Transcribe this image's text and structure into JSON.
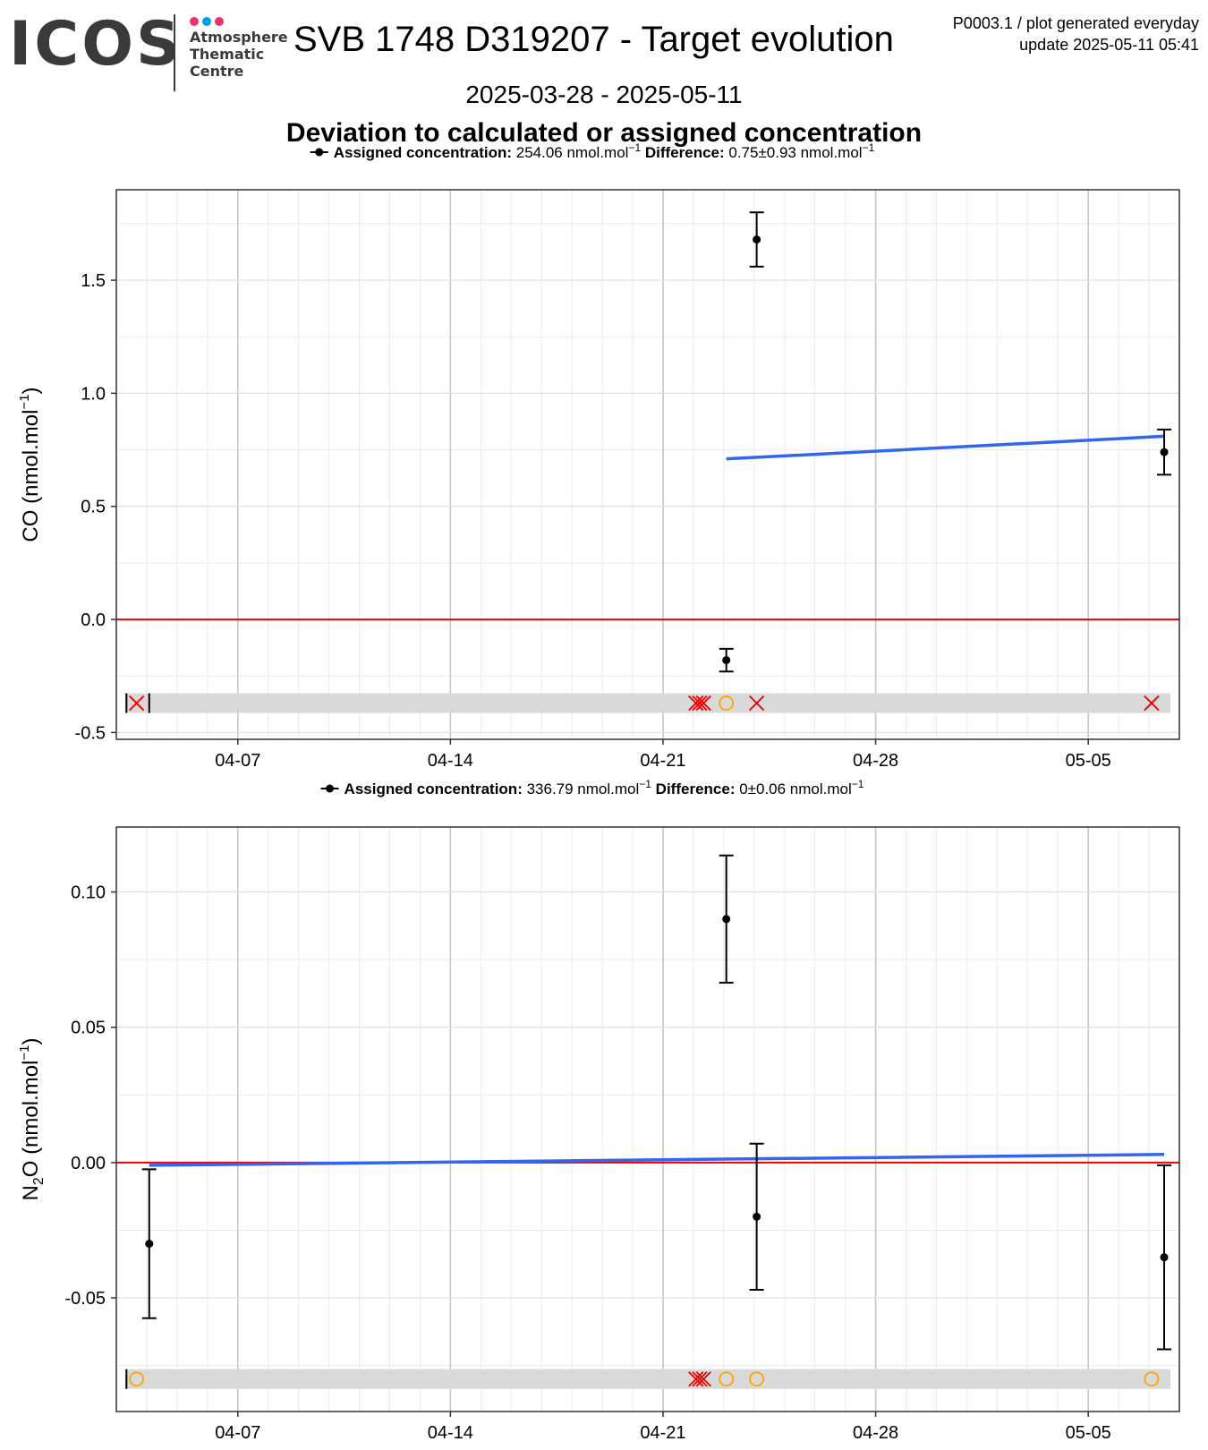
{
  "header": {
    "logo_text": "ICOS",
    "logo_sub": [
      "Atmosphere",
      "Thematic",
      "Centre"
    ],
    "logo_dot_colors": [
      "#e6336e",
      "#00a0e0",
      "#e6336e"
    ],
    "title": "SVB 1748 D319207 - Target evolution",
    "meta_line1": "P0003.1 / plot generated everyday",
    "meta_line2": "update  2025-05-11 05:41",
    "date_range": "2025-03-28 - 2025-05-11",
    "subtitle": "Deviation to calculated or assigned concentration"
  },
  "colors": {
    "point": "#000000",
    "trend": "#3366ee",
    "zero_line": "#ee0000",
    "flag_band": "#d9d9d9",
    "flag_x": "#ee0000",
    "flag_o": "#ffa500"
  },
  "chart_data": [
    {
      "type": "scatter",
      "legend": {
        "assigned_label": "Assigned concentration:",
        "assigned_value": "254.06 nmol.mol",
        "difference_label": "Difference:",
        "difference_value": "0.75±0.93 nmol.mol"
      },
      "ylabel": "CO (nmol.mol",
      "ylabel_sub": "",
      "ylabel_tail": ")",
      "ylim": [
        -0.53,
        1.9
      ],
      "yticks": [
        -0.5,
        0.0,
        0.5,
        1.0,
        1.5
      ],
      "ytick_labels": [
        "-0.5",
        "0.0",
        "0.5",
        "1.0",
        "1.5"
      ],
      "xlim": [
        "2025-04-03",
        "2025-05-08"
      ],
      "xticks": [
        "2025-04-07",
        "2025-04-14",
        "2025-04-21",
        "2025-04-28",
        "2025-05-05"
      ],
      "xtick_labels": [
        "04-07",
        "04-14",
        "04-21",
        "04-28",
        "05-05"
      ],
      "grid": true,
      "points": [
        {
          "x": "2025-04-23 02:00",
          "y": -0.18,
          "err": 0.05
        },
        {
          "x": "2025-04-24 02:00",
          "y": 1.68,
          "err": 0.12
        },
        {
          "x": "2025-05-07 12:00",
          "y": 0.74,
          "err": 0.1
        }
      ],
      "trend": [
        {
          "x": "2025-04-23 02:00",
          "y": 0.71
        },
        {
          "x": "2025-05-07 12:00",
          "y": 0.81
        }
      ],
      "flag_y": -0.37,
      "flags": [
        {
          "x": "2025-04-03 08:00",
          "kind": "bar"
        },
        {
          "x": "2025-04-03 16:00",
          "kind": "x"
        },
        {
          "x": "2025-04-04 02:00",
          "kind": "bar"
        },
        {
          "x": "2025-04-22 02:00",
          "kind": "x"
        },
        {
          "x": "2025-04-22 05:00",
          "kind": "x"
        },
        {
          "x": "2025-04-22 08:00",
          "kind": "x"
        },
        {
          "x": "2025-04-23 02:00",
          "kind": "o"
        },
        {
          "x": "2025-04-24 02:00",
          "kind": "x"
        },
        {
          "x": "2025-05-07 02:00",
          "kind": "x"
        }
      ]
    },
    {
      "type": "scatter",
      "legend": {
        "assigned_label": "Assigned concentration:",
        "assigned_value": "336.79 nmol.mol",
        "difference_label": "Difference:",
        "difference_value": "0±0.06 nmol.mol"
      },
      "ylabel": "N",
      "ylabel_sub": "2",
      "ylabel_tail": "O (nmol.mol",
      "ylim": [
        -0.092,
        0.124
      ],
      "yticks": [
        -0.05,
        0.0,
        0.05,
        0.1
      ],
      "ytick_labels": [
        "-0.05",
        "0.00",
        "0.05",
        "0.10"
      ],
      "xlim": [
        "2025-04-03",
        "2025-05-08"
      ],
      "xticks": [
        "2025-04-07",
        "2025-04-14",
        "2025-04-21",
        "2025-04-28",
        "2025-05-05"
      ],
      "xtick_labels": [
        "04-07",
        "04-14",
        "04-21",
        "04-28",
        "05-05"
      ],
      "grid": true,
      "points": [
        {
          "x": "2025-04-04 02:00",
          "y": -0.03,
          "err": 0.0275
        },
        {
          "x": "2025-04-23 02:00",
          "y": 0.09,
          "err": 0.0235
        },
        {
          "x": "2025-04-24 02:00",
          "y": -0.02,
          "err": 0.027
        },
        {
          "x": "2025-05-07 12:00",
          "y": -0.035,
          "err": 0.034
        }
      ],
      "trend": [
        {
          "x": "2025-04-04 02:00",
          "y": -0.001
        },
        {
          "x": "2025-05-07 12:00",
          "y": 0.003
        }
      ],
      "flag_y": -0.08,
      "flags": [
        {
          "x": "2025-04-03 08:00",
          "kind": "bar"
        },
        {
          "x": "2025-04-03 16:00",
          "kind": "o"
        },
        {
          "x": "2025-04-22 02:00",
          "kind": "x"
        },
        {
          "x": "2025-04-22 05:00",
          "kind": "x"
        },
        {
          "x": "2025-04-22 08:00",
          "kind": "x"
        },
        {
          "x": "2025-04-23 02:00",
          "kind": "o"
        },
        {
          "x": "2025-04-24 02:00",
          "kind": "o"
        },
        {
          "x": "2025-05-07 02:00",
          "kind": "o"
        }
      ]
    }
  ]
}
